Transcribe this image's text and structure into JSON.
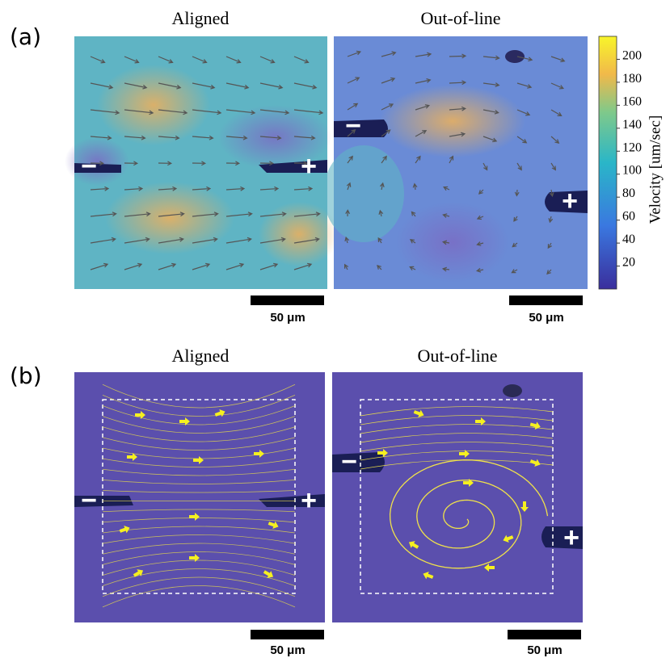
{
  "panel_a": {
    "label": "(a)",
    "titles": [
      "Aligned",
      "Out-of-line"
    ],
    "scale_bars": [
      "50 μm",
      "50 μm"
    ],
    "electrodes": [
      "−",
      "+",
      "−",
      "+"
    ]
  },
  "panel_b": {
    "label": "(b)",
    "titles": [
      "Aligned",
      "Out-of-line"
    ],
    "scale_bars": [
      "50 μm",
      "50 μm"
    ],
    "electrodes": [
      "−",
      "+",
      "−",
      "+"
    ]
  },
  "colorbar": {
    "label": "Velocity [um/sec]",
    "range": [
      0,
      220
    ],
    "ticks": [
      20,
      40,
      60,
      80,
      100,
      120,
      140,
      160,
      180,
      200
    ]
  }
}
